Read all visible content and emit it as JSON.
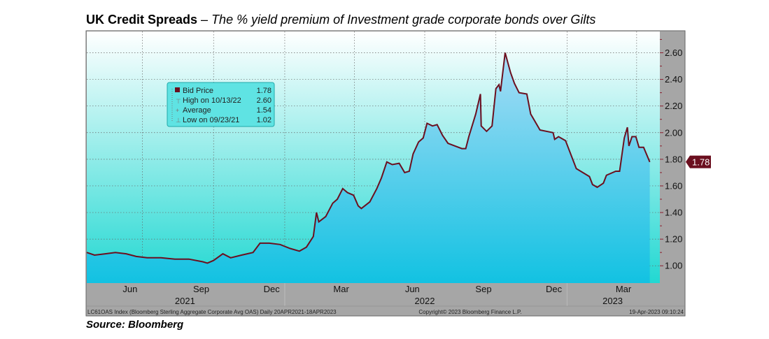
{
  "title": {
    "bold": "UK Credit Spreads",
    "dash": " – ",
    "italic": "The % yield premium of Investment grade corporate bonds over Gilts"
  },
  "source": "Source:  Bloomberg",
  "footer": {
    "left": "LC61OAS Index (Bloomberg Sterling Aggregate Corporate Avg OAS)  Daily 20APR2021-18APR2023",
    "center": "Copyright© 2023 Bloomberg Finance L.P.",
    "right": "19-Apr-2023 09:10:24"
  },
  "legend": {
    "rows": [
      {
        "label": "Bid Price",
        "value": "1.78"
      },
      {
        "label": "High on 10/13/22",
        "value": "2.60"
      },
      {
        "label": "Average",
        "value": "1.54"
      },
      {
        "label": "Low on 09/23/21",
        "value": "1.02"
      }
    ]
  },
  "colors": {
    "line": "#6b0f1f",
    "panel": "#a6a6a6",
    "last_price_tag": "#6b0f1f"
  },
  "chart_data": {
    "type": "area",
    "title": "",
    "xlabel": "",
    "ylabel": "",
    "xlim": [
      "2021-04-20",
      "2023-05-01"
    ],
    "ylim": [
      0.87,
      2.76
    ],
    "y_axis_side": "right",
    "grid": true,
    "y_ticks": [
      "2.60",
      "2.40",
      "2.20",
      "2.00",
      "1.80",
      "1.60",
      "1.40",
      "1.20",
      "1.00"
    ],
    "x_month_ticks": [
      {
        "label": "Jun",
        "date": "2021-06-15"
      },
      {
        "label": "Sep",
        "date": "2021-09-15"
      },
      {
        "label": "Dec",
        "date": "2021-12-15"
      },
      {
        "label": "Mar",
        "date": "2022-03-15"
      },
      {
        "label": "Jun",
        "date": "2022-06-15"
      },
      {
        "label": "Sep",
        "date": "2022-09-15"
      },
      {
        "label": "Dec",
        "date": "2022-12-15"
      },
      {
        "label": "Mar",
        "date": "2023-03-15"
      }
    ],
    "x_year_ticks": [
      {
        "label": "2021",
        "date": "2021-08-25"
      },
      {
        "label": "2022",
        "date": "2022-07-01"
      },
      {
        "label": "2023",
        "date": "2023-03-01"
      }
    ],
    "last_value": "1.78",
    "series": [
      {
        "x": [
          "2021-04-20",
          "2021-04-30",
          "2021-05-14",
          "2021-05-27",
          "2021-06-10",
          "2021-06-23",
          "2021-07-07",
          "2021-07-25",
          "2021-08-12",
          "2021-08-30",
          "2021-09-17",
          "2021-09-23",
          "2021-10-01",
          "2021-10-13",
          "2021-10-23",
          "2021-11-06",
          "2021-11-21",
          "2021-11-30",
          "2021-12-12",
          "2021-12-26",
          "2022-01-08",
          "2022-01-20",
          "2022-01-29",
          "2022-02-07",
          "2022-02-11",
          "2022-02-14",
          "2022-02-23",
          "2022-03-04",
          "2022-03-10",
          "2022-03-17",
          "2022-03-23",
          "2022-03-31",
          "2022-04-06",
          "2022-04-10",
          "2022-04-21",
          "2022-04-30",
          "2022-05-06",
          "2022-05-13",
          "2022-05-20",
          "2022-05-29",
          "2022-06-05",
          "2022-06-11",
          "2022-06-16",
          "2022-06-23",
          "2022-06-29",
          "2022-07-04",
          "2022-07-11",
          "2022-07-17",
          "2022-07-24",
          "2022-07-31",
          "2022-08-09",
          "2022-08-18",
          "2022-08-23",
          "2022-08-27",
          "2022-09-05",
          "2022-09-11",
          "2022-09-12",
          "2022-09-19",
          "2022-09-26",
          "2022-10-01",
          "2022-10-05",
          "2022-10-07",
          "2022-10-13",
          "2022-10-20",
          "2022-10-25",
          "2022-10-31",
          "2022-11-10",
          "2022-11-15",
          "2022-11-27",
          "2022-12-14",
          "2022-12-16",
          "2022-12-21",
          "2022-12-30",
          "2023-01-13",
          "2023-01-30",
          "2023-02-03",
          "2023-02-09",
          "2023-02-17",
          "2023-02-21",
          "2023-03-05",
          "2023-03-10",
          "2023-03-16",
          "2023-03-20",
          "2023-03-22",
          "2023-03-26",
          "2023-03-31",
          "2023-04-04",
          "2023-04-10",
          "2023-04-18"
        ],
        "y": [
          1.1,
          1.08,
          1.09,
          1.1,
          1.09,
          1.07,
          1.06,
          1.06,
          1.05,
          1.05,
          1.03,
          1.02,
          1.04,
          1.09,
          1.06,
          1.08,
          1.1,
          1.17,
          1.17,
          1.16,
          1.13,
          1.11,
          1.14,
          1.22,
          1.4,
          1.33,
          1.37,
          1.47,
          1.5,
          1.58,
          1.55,
          1.53,
          1.45,
          1.43,
          1.48,
          1.58,
          1.66,
          1.78,
          1.76,
          1.77,
          1.7,
          1.71,
          1.84,
          1.93,
          1.96,
          2.07,
          2.05,
          2.06,
          1.98,
          1.92,
          1.9,
          1.88,
          1.88,
          1.97,
          2.14,
          2.29,
          2.05,
          2.01,
          2.05,
          2.33,
          2.36,
          2.31,
          2.6,
          2.45,
          2.37,
          2.3,
          2.29,
          2.14,
          2.02,
          2.0,
          1.95,
          1.97,
          1.94,
          1.73,
          1.67,
          1.61,
          1.59,
          1.62,
          1.68,
          1.71,
          1.71,
          1.96,
          2.04,
          1.9,
          1.97,
          1.97,
          1.89,
          1.89,
          1.78
        ]
      }
    ]
  }
}
